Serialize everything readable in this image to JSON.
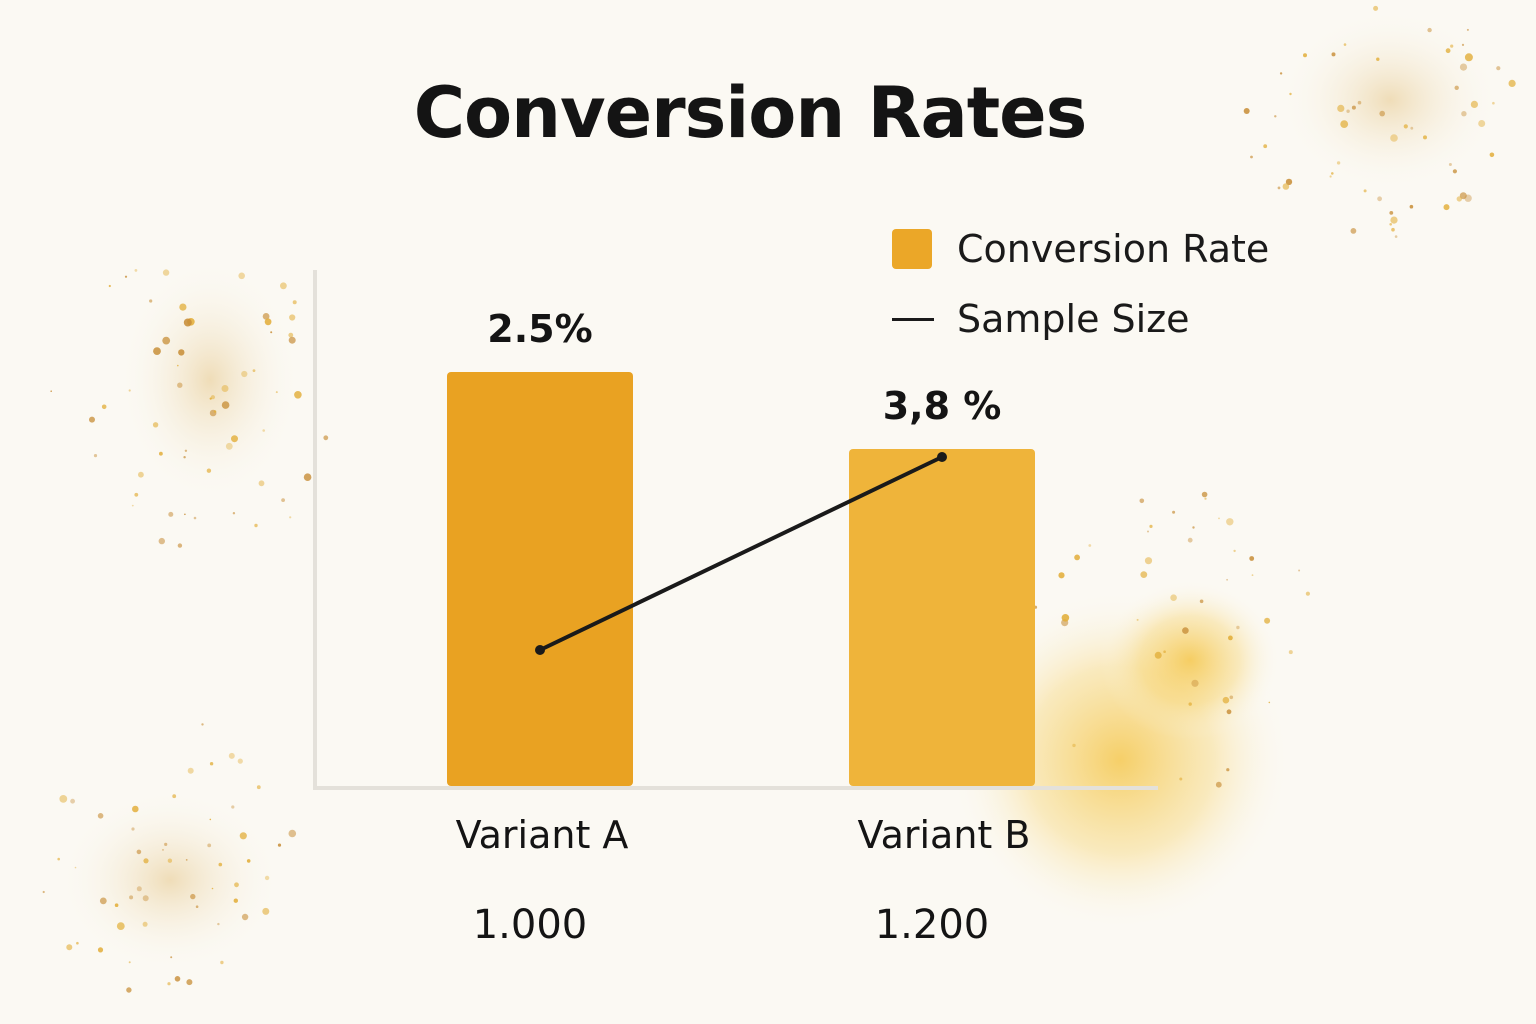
{
  "title": "Conversion Rates",
  "chart_data": {
    "type": "bar",
    "categories": [
      "Variant A",
      "Variant B"
    ],
    "series": [
      {
        "name": "Conversion Rate",
        "kind": "bar",
        "values": [
          2.5,
          3.8
        ],
        "value_labels": [
          "2.5%",
          "3,8 %"
        ]
      },
      {
        "name": "Sample Size",
        "kind": "line",
        "values": [
          1000,
          1200
        ],
        "value_labels": [
          "1.000",
          "1.200"
        ]
      }
    ],
    "legend_position": "top-right",
    "grid": false,
    "colors": {
      "bar_a": "#e9a222",
      "bar_b": "#efb43a",
      "line": "#1a1a1a",
      "axis": "#e4e1da",
      "text": "#141414"
    }
  }
}
